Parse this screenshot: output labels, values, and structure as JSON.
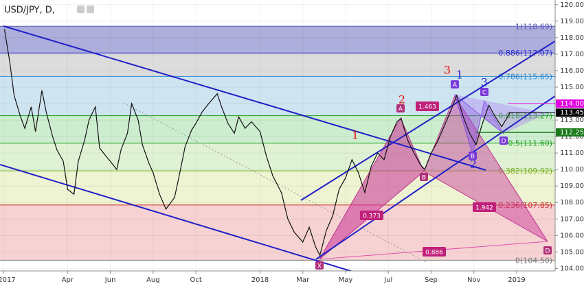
{
  "chart_data": {
    "type": "line",
    "title": "USD/JPY, D,",
    "x": [
      0.05,
      0.3,
      0.5,
      0.8,
      1,
      1.3,
      1.5,
      1.8,
      2,
      2.3,
      2.5,
      2.8,
      3,
      3.3,
      3.5,
      3.8,
      4,
      4.3,
      4.5,
      4.8,
      5,
      5.3,
      5.5,
      5.8,
      6,
      6.3,
      6.5,
      6.8,
      7,
      7.3,
      7.6,
      8,
      8.2,
      8.5,
      8.8,
      9,
      9.3,
      9.6,
      10,
      10.2,
      10.5,
      10.8,
      11,
      11.3,
      11.6,
      12,
      12.3,
      12.6,
      13,
      13.3,
      13.6,
      14,
      14.3,
      14.6,
      14.8,
      15.1,
      15.4,
      15.7,
      16,
      16.3,
      16.6,
      16.9,
      17.2,
      17.5,
      17.8,
      18.1,
      18.4,
      18.6,
      18.9,
      19.2,
      19.5,
      19.7,
      20,
      20.3,
      20.6,
      20.9,
      21.2,
      21.5,
      21.8,
      22.1,
      22.4,
      22.7,
      23,
      23.3,
      23.7
    ],
    "values": [
      118.5,
      116.5,
      114.5,
      113.2,
      112.5,
      113.8,
      112.3,
      114.8,
      113.5,
      112.0,
      111.2,
      110.5,
      108.8,
      108.5,
      110.5,
      111.8,
      113.0,
      113.8,
      111.3,
      110.8,
      110.5,
      110.0,
      111.2,
      112.2,
      114.0,
      113.0,
      111.5,
      110.4,
      109.8,
      108.5,
      107.6,
      108.3,
      109.5,
      111.4,
      112.4,
      112.8,
      113.5,
      114.0,
      114.6,
      113.8,
      112.8,
      112.2,
      113.2,
      112.5,
      112.9,
      112.3,
      110.8,
      109.6,
      108.6,
      107.0,
      106.2,
      105.6,
      106.5,
      105.3,
      104.8,
      106.3,
      107.2,
      108.8,
      109.5,
      110.6,
      109.8,
      108.6,
      110.2,
      111.0,
      110.6,
      112.0,
      112.9,
      113.1,
      111.8,
      111.0,
      110.3,
      110.0,
      111.0,
      111.7,
      112.6,
      113.5,
      114.5,
      113.2,
      112.2,
      111.5,
      112.8,
      113.9,
      113.2,
      112.6,
      113.45
    ],
    "color": "#111111",
    "xlim": [
      -0.16,
      25.8
    ],
    "ylim": [
      103.85,
      120.2
    ],
    "xticks": [
      {
        "value": 0,
        "label": "2017"
      },
      {
        "value": 3,
        "label": "Apr"
      },
      {
        "value": 5,
        "label": "Jun"
      },
      {
        "value": 7,
        "label": "Aug"
      },
      {
        "value": 9,
        "label": "Oct"
      },
      {
        "value": 12,
        "label": "2018"
      },
      {
        "value": 14,
        "label": "Mar"
      },
      {
        "value": 16,
        "label": "May"
      },
      {
        "value": 18,
        "label": "Jul"
      },
      {
        "value": 20,
        "label": "Sep"
      },
      {
        "value": 22,
        "label": "Nov"
      },
      {
        "value": 24,
        "label": "2019"
      }
    ],
    "yticks": [
      {
        "value": 104,
        "label": "104.00"
      },
      {
        "value": 105,
        "label": "105.00"
      },
      {
        "value": 106,
        "label": "106.00"
      },
      {
        "value": 107,
        "label": "107.00"
      },
      {
        "value": 108,
        "label": "108.00"
      },
      {
        "value": 109,
        "label": "109.00"
      },
      {
        "value": 110,
        "label": "110.00"
      },
      {
        "value": 111,
        "label": "111.00"
      },
      {
        "value": 112,
        "label": "112.00"
      },
      {
        "value": 113,
        "label": "113.00"
      },
      {
        "value": 114,
        "label": "114.00"
      },
      {
        "value": 115,
        "label": "115.00"
      },
      {
        "value": 116,
        "label": "116.00"
      },
      {
        "value": 117,
        "label": "117.00"
      },
      {
        "value": 118,
        "label": "118.00"
      },
      {
        "value": 119,
        "label": "119.00"
      },
      {
        "value": 120,
        "label": "120.00"
      }
    ],
    "grid": true,
    "fib_levels": [
      {
        "label": "1(118.69)",
        "value": 118.69,
        "color": "#5a5ab8",
        "fill": "#aeaedc"
      },
      {
        "label": "0.886(117.07)",
        "value": 117.07,
        "color": "#2d2dd0",
        "fill": "#dcdcdc"
      },
      {
        "label": "0.786(115.65)",
        "value": 115.65,
        "color": "#2a8ad0",
        "fill": "#cfe4f1"
      },
      {
        "label": "0.618(113.27)",
        "value": 113.27,
        "color": "#20a020",
        "fill": "#cdedcf"
      },
      {
        "label": "0.5(111.60)",
        "value": 111.6,
        "color": "#20a020",
        "fill": "#dff2d4"
      },
      {
        "label": "0.382(109.92)",
        "value": 109.92,
        "color": "#7ab020",
        "fill": "#eef3d2"
      },
      {
        "label": "0.236(107.85)",
        "value": 107.85,
        "color": "#d03030",
        "fill": "#f6d2d2"
      },
      {
        "label": "0(104.50)",
        "value": 104.5,
        "color": "#777777",
        "fill": "#f6d2d2"
      }
    ],
    "price_tags": [
      {
        "value": 114.0,
        "label": "114.00",
        "color": "#e000e0"
      },
      {
        "value": 113.45,
        "label": "113.45",
        "color": "#000000"
      },
      {
        "value": 112.25,
        "label": "112.25",
        "color": "#1a7a1a"
      }
    ],
    "annotations": [
      {
        "text": "X",
        "color": "#b0307a"
      },
      {
        "text": "A",
        "color": "#b0307a"
      },
      {
        "text": "B",
        "color": "#b0307a"
      },
      {
        "text": "D",
        "color": "#b0307a"
      },
      {
        "text": "A",
        "color": "#7a3ad8"
      },
      {
        "text": "B",
        "color": "#7a3ad8"
      },
      {
        "text": "C",
        "color": "#7a3ad8"
      },
      {
        "text": "D",
        "color": "#7a3ad8"
      },
      {
        "text": "1.463",
        "color": "#c0207a"
      },
      {
        "text": "0.373",
        "color": "#c0207a"
      },
      {
        "text": "1.942",
        "color": "#c0207a"
      },
      {
        "text": "0.886",
        "color": "#c0207a"
      },
      {
        "text": "1",
        "color": "#e01010"
      },
      {
        "text": "2",
        "color": "#e01010"
      },
      {
        "text": "3",
        "color": "#e01010"
      },
      {
        "text": "1",
        "color": "#2020d0"
      },
      {
        "text": "2",
        "color": "#2020d0"
      },
      {
        "text": "3",
        "color": "#2020d0"
      }
    ]
  }
}
